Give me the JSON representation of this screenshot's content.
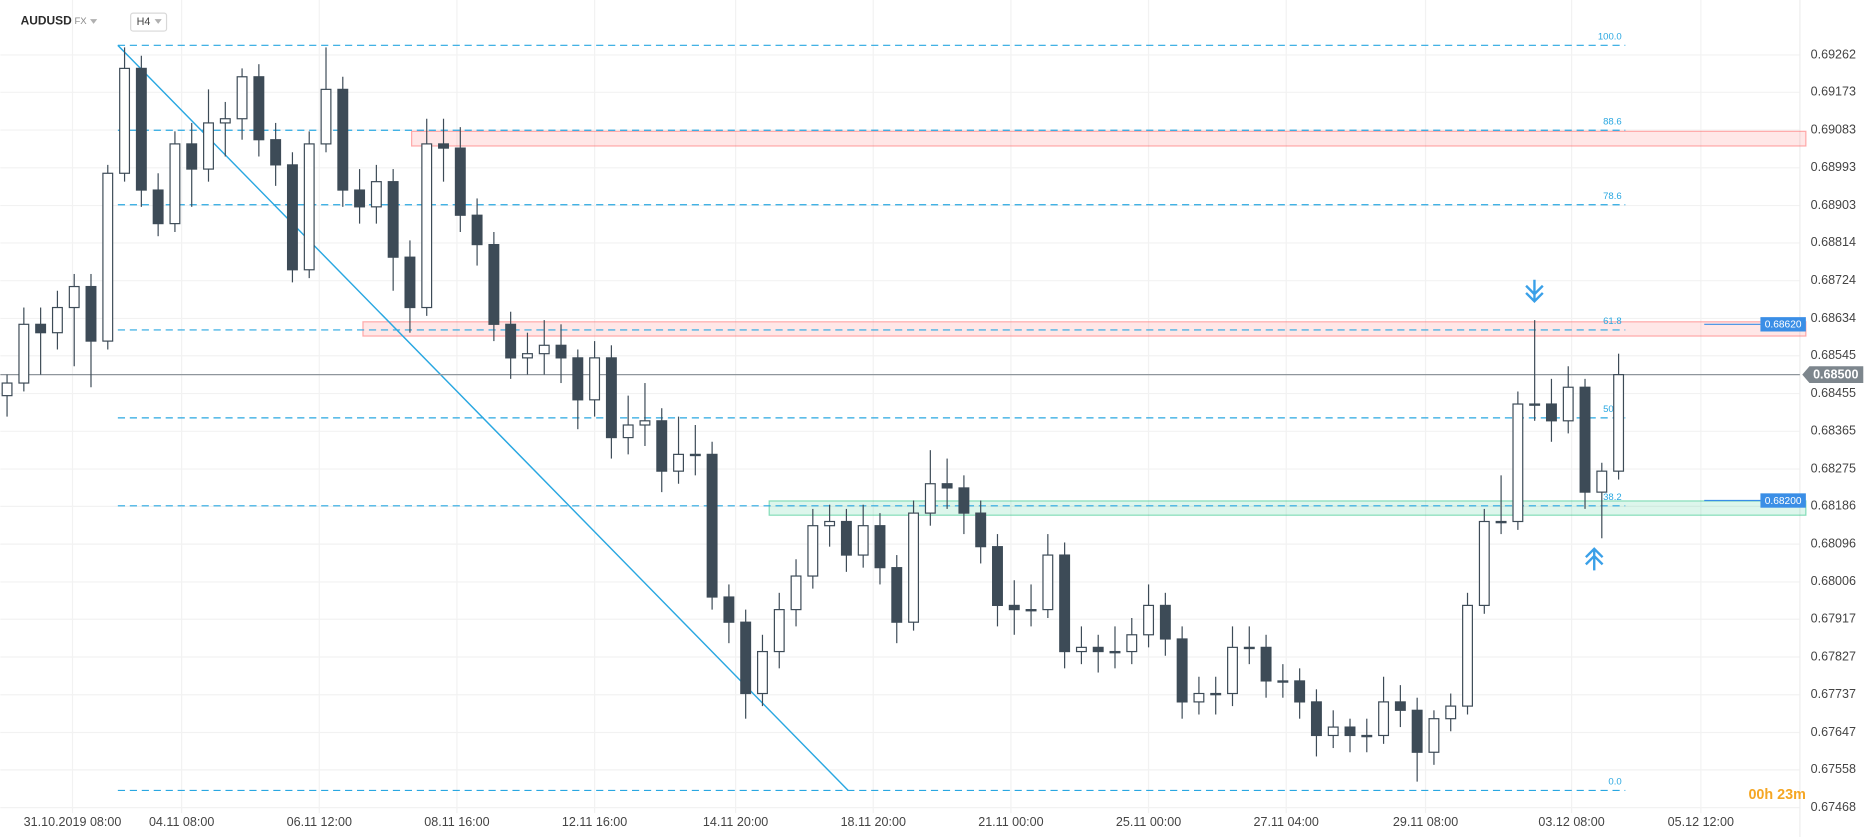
{
  "chart_data": {
    "type": "candlestick",
    "symbol": "AUDUSD",
    "market": "FX",
    "timeframe": "H4",
    "timer": "00h 23m",
    "grid": true,
    "up_color": "#ffffff",
    "down_color": "#3d4b57",
    "line_color": "#29a7e1",
    "xlim": [
      -0.4,
      106.8
    ],
    "xticks": [
      {
        "value": 3.9,
        "label": "31.10.2019  08:00"
      },
      {
        "value": 10.4,
        "label": "04.11  08:00"
      },
      {
        "value": 18.6,
        "label": "06.11  12:00"
      },
      {
        "value": 26.8,
        "label": "08.11  16:00"
      },
      {
        "value": 35,
        "label": "12.11  16:00"
      },
      {
        "value": 43.4,
        "label": "14.11  20:00"
      },
      {
        "value": 51.6,
        "label": "18.11  20:00"
      },
      {
        "value": 59.8,
        "label": "21.11  00:00"
      },
      {
        "value": 68,
        "label": "25.11  00:00"
      },
      {
        "value": 76.2,
        "label": "27.11  04:00"
      },
      {
        "value": 84.5,
        "label": "29.11  08:00"
      },
      {
        "value": 93.2,
        "label": "03.12  08:00"
      },
      {
        "value": 100.9,
        "label": "05.12  12:00"
      }
    ],
    "ylim": [
      0.67455,
      0.69393
    ],
    "yticks": [
      0.69262,
      0.69173,
      0.69083,
      0.68993,
      0.68903,
      0.68814,
      0.68724,
      0.68634,
      0.68545,
      0.68455,
      0.68365,
      0.68275,
      0.68186,
      0.68096,
      0.68006,
      0.67917,
      0.67827,
      0.67737,
      0.67647,
      0.67558,
      0.67468
    ],
    "last_price": {
      "value": 0.685,
      "label": "0.68500"
    },
    "price_tags": [
      {
        "value": 0.6862,
        "label": "0.68620"
      },
      {
        "value": 0.682,
        "label": "0.68200"
      }
    ],
    "zones": [
      {
        "start": 24.1,
        "top": 0.6908,
        "bottom": 0.69045,
        "color": "#ff6b6b"
      },
      {
        "start": 21.2,
        "top": 0.68626,
        "bottom": 0.68592,
        "color": "#ff6b6b"
      },
      {
        "start": 45.4,
        "top": 0.68199,
        "bottom": 0.68165,
        "color": "#2ec486"
      }
    ],
    "fibonacci": {
      "high_at": 6.6,
      "low_at": 50.1,
      "end": 96.4,
      "high": 0.69285,
      "low": 0.67509,
      "levels": [
        {
          "value": 100,
          "label": "100.0"
        },
        88.6,
        78.6,
        61.8,
        {
          "value": 50,
          "label": "50.0"
        },
        38.2,
        {
          "value": 0,
          "label": "0.0"
        }
      ]
    },
    "ohlc": [
      [
        0.6845,
        0.685,
        0.684,
        0.6848
      ],
      [
        0.6848,
        0.6866,
        0.6846,
        0.6862
      ],
      [
        0.6862,
        0.6866,
        0.685,
        0.686
      ],
      [
        0.686,
        0.687,
        0.6856,
        0.6866
      ],
      [
        0.6866,
        0.6874,
        0.6852,
        0.6871
      ],
      [
        0.6871,
        0.6874,
        0.6847,
        0.6858
      ],
      [
        0.6858,
        0.69,
        0.6856,
        0.6898
      ],
      [
        0.6898,
        0.6928,
        0.6896,
        0.6923
      ],
      [
        0.6923,
        0.6926,
        0.689,
        0.6894
      ],
      [
        0.6894,
        0.6898,
        0.6883,
        0.6886
      ],
      [
        0.6886,
        0.6908,
        0.6884,
        0.6905
      ],
      [
        0.6905,
        0.691,
        0.689,
        0.6899
      ],
      [
        0.6899,
        0.6918,
        0.6896,
        0.691
      ],
      [
        0.691,
        0.6915,
        0.6902,
        0.6911
      ],
      [
        0.6911,
        0.6923,
        0.6906,
        0.6921
      ],
      [
        0.6921,
        0.6924,
        0.6902,
        0.6906
      ],
      [
        0.6906,
        0.691,
        0.6895,
        0.69
      ],
      [
        0.69,
        0.6903,
        0.6872,
        0.6875
      ],
      [
        0.6875,
        0.6908,
        0.6873,
        0.6905
      ],
      [
        0.6905,
        0.6928,
        0.6903,
        0.6918
      ],
      [
        0.6918,
        0.6921,
        0.689,
        0.6894
      ],
      [
        0.6894,
        0.6899,
        0.6886,
        0.689
      ],
      [
        0.689,
        0.69,
        0.6886,
        0.6896
      ],
      [
        0.6896,
        0.6899,
        0.687,
        0.6878
      ],
      [
        0.6878,
        0.6882,
        0.686,
        0.6866
      ],
      [
        0.6866,
        0.6911,
        0.6864,
        0.6905
      ],
      [
        0.6905,
        0.6911,
        0.6896,
        0.6904
      ],
      [
        0.6904,
        0.6909,
        0.6884,
        0.6888
      ],
      [
        0.6888,
        0.6892,
        0.6876,
        0.6881
      ],
      [
        0.6881,
        0.6884,
        0.6858,
        0.6862
      ],
      [
        0.6862,
        0.6865,
        0.6849,
        0.6854
      ],
      [
        0.6854,
        0.686,
        0.685,
        0.6855
      ],
      [
        0.6855,
        0.6863,
        0.685,
        0.6857
      ],
      [
        0.6857,
        0.6862,
        0.6848,
        0.6854
      ],
      [
        0.6854,
        0.6856,
        0.6837,
        0.6844
      ],
      [
        0.6844,
        0.6858,
        0.684,
        0.6854
      ],
      [
        0.6854,
        0.6857,
        0.683,
        0.6835
      ],
      [
        0.6835,
        0.6845,
        0.6831,
        0.6838
      ],
      [
        0.6838,
        0.6848,
        0.6833,
        0.6839
      ],
      [
        0.6839,
        0.6842,
        0.6822,
        0.6827
      ],
      [
        0.6827,
        0.684,
        0.6824,
        0.6831
      ],
      [
        0.6831,
        0.6838,
        0.6826,
        0.6831
      ],
      [
        0.6831,
        0.6834,
        0.6794,
        0.6797
      ],
      [
        0.6797,
        0.68,
        0.6786,
        0.6791
      ],
      [
        0.6791,
        0.6794,
        0.6768,
        0.6774
      ],
      [
        0.6774,
        0.6788,
        0.6771,
        0.6784
      ],
      [
        0.6784,
        0.6798,
        0.678,
        0.6794
      ],
      [
        0.6794,
        0.6806,
        0.679,
        0.6802
      ],
      [
        0.6802,
        0.6818,
        0.6799,
        0.6814
      ],
      [
        0.6814,
        0.6819,
        0.6809,
        0.6815
      ],
      [
        0.6815,
        0.6818,
        0.6803,
        0.6807
      ],
      [
        0.6807,
        0.6819,
        0.6804,
        0.6814
      ],
      [
        0.6814,
        0.6817,
        0.68,
        0.6804
      ],
      [
        0.6804,
        0.6807,
        0.6786,
        0.6791
      ],
      [
        0.6791,
        0.682,
        0.6789,
        0.6817
      ],
      [
        0.6817,
        0.6832,
        0.6814,
        0.6824
      ],
      [
        0.6824,
        0.683,
        0.6818,
        0.6823
      ],
      [
        0.6823,
        0.6826,
        0.6812,
        0.6817
      ],
      [
        0.6817,
        0.682,
        0.6805,
        0.6809
      ],
      [
        0.6809,
        0.6812,
        0.679,
        0.6795
      ],
      [
        0.6795,
        0.6801,
        0.6788,
        0.6794
      ],
      [
        0.6794,
        0.68,
        0.679,
        0.6794
      ],
      [
        0.6794,
        0.6812,
        0.6792,
        0.6807
      ],
      [
        0.6807,
        0.681,
        0.678,
        0.6784
      ],
      [
        0.6784,
        0.679,
        0.6781,
        0.6785
      ],
      [
        0.6785,
        0.6788,
        0.6779,
        0.6784
      ],
      [
        0.6784,
        0.679,
        0.678,
        0.6784
      ],
      [
        0.6784,
        0.6792,
        0.6781,
        0.6788
      ],
      [
        0.6788,
        0.68,
        0.6785,
        0.6795
      ],
      [
        0.6795,
        0.6798,
        0.6783,
        0.6787
      ],
      [
        0.6787,
        0.679,
        0.6768,
        0.6772
      ],
      [
        0.6772,
        0.6778,
        0.6769,
        0.6774
      ],
      [
        0.6774,
        0.6778,
        0.6769,
        0.6774
      ],
      [
        0.6774,
        0.679,
        0.6771,
        0.6785
      ],
      [
        0.6785,
        0.679,
        0.6781,
        0.6785
      ],
      [
        0.6785,
        0.6788,
        0.6773,
        0.6777
      ],
      [
        0.6777,
        0.6781,
        0.6773,
        0.6777
      ],
      [
        0.6777,
        0.678,
        0.6768,
        0.6772
      ],
      [
        0.6772,
        0.6775,
        0.6759,
        0.6764
      ],
      [
        0.6764,
        0.677,
        0.6761,
        0.6766
      ],
      [
        0.6766,
        0.6768,
        0.676,
        0.6764
      ],
      [
        0.6764,
        0.6768,
        0.676,
        0.6764
      ],
      [
        0.6764,
        0.6778,
        0.6762,
        0.6772
      ],
      [
        0.6772,
        0.6776,
        0.6766,
        0.677
      ],
      [
        0.677,
        0.6773,
        0.6753,
        0.676
      ],
      [
        0.676,
        0.677,
        0.6757,
        0.6768
      ],
      [
        0.6768,
        0.6774,
        0.6765,
        0.6771
      ],
      [
        0.6771,
        0.6798,
        0.6769,
        0.6795
      ],
      [
        0.6795,
        0.6818,
        0.6793,
        0.6815
      ],
      [
        0.6815,
        0.6826,
        0.6812,
        0.6815
      ],
      [
        0.6815,
        0.6846,
        0.6813,
        0.6843
      ],
      [
        0.6843,
        0.6863,
        0.6839,
        0.6843
      ],
      [
        0.6843,
        0.6849,
        0.6834,
        0.6839
      ],
      [
        0.6839,
        0.6852,
        0.6836,
        0.6847
      ],
      [
        0.6847,
        0.6849,
        0.6818,
        0.6822
      ],
      [
        0.6822,
        0.6829,
        0.6811,
        0.6827
      ],
      [
        0.6827,
        0.6855,
        0.6825,
        0.685
      ]
    ]
  }
}
